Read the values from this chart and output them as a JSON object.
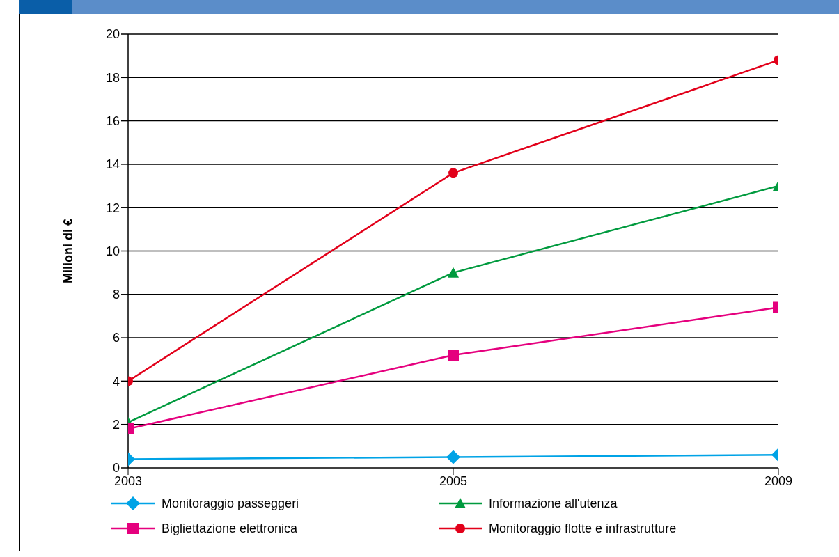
{
  "chart_data": {
    "type": "line",
    "ylabel": "Milioni di €",
    "categories": [
      "2003",
      "2005",
      "2009"
    ],
    "ylim": [
      0,
      20
    ],
    "yticks": [
      0,
      2,
      4,
      6,
      8,
      10,
      12,
      14,
      16,
      18,
      20
    ],
    "grid": "y",
    "legend": "bottom",
    "series": [
      {
        "name": "Monitoraggio passeggeri",
        "color": "#00a3e6",
        "marker": "diamond",
        "values": [
          0.4,
          0.5,
          0.6
        ]
      },
      {
        "name": "Informazione all'utenza",
        "color": "#009a3e",
        "marker": "triangle",
        "values": [
          2.1,
          9,
          13
        ]
      },
      {
        "name": "Bigliettazione elettronica",
        "color": "#e5007e",
        "marker": "square",
        "values": [
          1.8,
          5.2,
          7.4
        ]
      },
      {
        "name": "Monitoraggio flotte e infrastrutture",
        "color": "#e2001a",
        "marker": "circle",
        "values": [
          4,
          13.6,
          18.8
        ]
      }
    ]
  }
}
